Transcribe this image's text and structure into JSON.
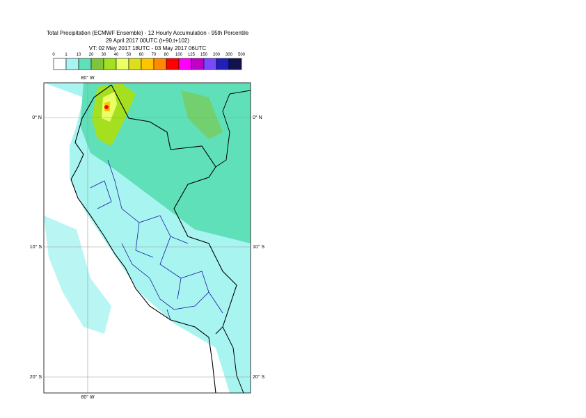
{
  "title_lines": [
    "Total Precipitation (ECMWF Ensemble) - 12 Hourly Accumulation - 95th Percentile",
    "29 April 2017 00UTC (t+90,t+102)",
    "VT: 02 May 2017 18UTC - 03 May 2017 06UTC"
  ],
  "legend": {
    "labels": [
      "0",
      "1",
      "10",
      "20",
      "30",
      "40",
      "50",
      "60",
      "70",
      "80",
      "100",
      "125",
      "150",
      "200",
      "300",
      "500"
    ],
    "colors": [
      "#ffffff",
      "#a8f4f0",
      "#5fe0b8",
      "#80c43c",
      "#a4e020",
      "#eaff66",
      "#dede1c",
      "#ffc400",
      "#ff8a00",
      "#ff0000",
      "#ff00ff",
      "#c000c8",
      "#7a48ff",
      "#2020b8",
      "#12124e"
    ]
  },
  "map": {
    "lon_labels": [
      "80° W"
    ],
    "lat_labels": [
      "0° N",
      "10° S",
      "20° S"
    ]
  }
}
